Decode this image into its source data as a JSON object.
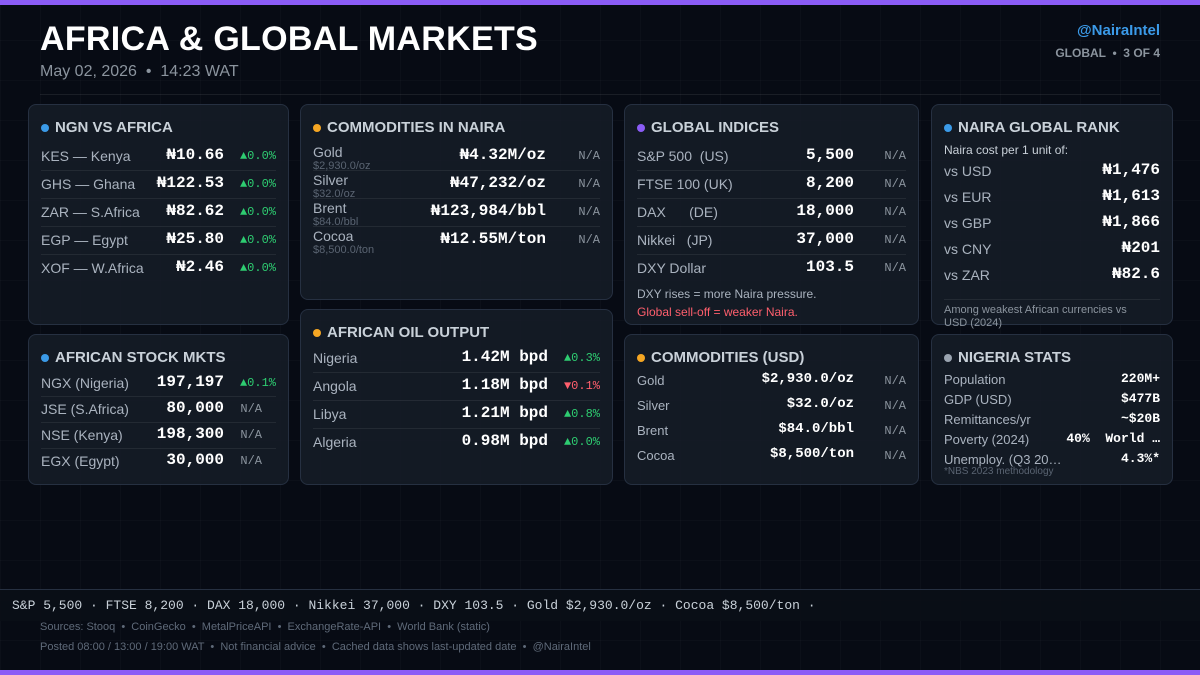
{
  "header": {
    "title": "AFRICA & GLOBAL MARKETS",
    "subtitle": "May 02, 2026  •  14:23 WAT",
    "handle": "@NairaIntel",
    "page_indicator": "GLOBAL  •  3 OF 4"
  },
  "colors": {
    "accent_bar": "#8b5cf6",
    "dot_blue": "#3b9ae8",
    "dot_orange": "#f5a623",
    "dot_purple": "#8b5cf6",
    "dot_gray": "#9aa4b0",
    "up_green": "#2ecc71",
    "down_red": "#ff5f6d"
  },
  "ngn_vs_africa": {
    "title": "NGN VS AFRICA",
    "rows": [
      {
        "label": "KES — Kenya",
        "value": "₦10.66",
        "change": "▲0.0%"
      },
      {
        "label": "GHS — Ghana",
        "value": "₦122.53",
        "change": "▲0.0%"
      },
      {
        "label": "ZAR — S.Africa",
        "value": "₦82.62",
        "change": "▲0.0%"
      },
      {
        "label": "EGP — Egypt",
        "value": "₦25.80",
        "change": "▲0.0%"
      },
      {
        "label": "XOF — W.Africa",
        "value": "₦2.46",
        "change": "▲0.0%"
      }
    ]
  },
  "commodities_naira": {
    "title": "COMMODITIES IN NAIRA",
    "rows": [
      {
        "label": "Gold",
        "sub": "$2,930.0/oz",
        "value": "₦4.32M/oz",
        "change": "N/A"
      },
      {
        "label": "Silver",
        "sub": "$32.0/oz",
        "value": "₦47,232/oz",
        "change": "N/A"
      },
      {
        "label": "Brent",
        "sub": "$84.0/bbl",
        "value": "₦123,984/bbl",
        "change": "N/A"
      },
      {
        "label": "Cocoa",
        "sub": "$8,500.0/ton",
        "value": "₦12.55M/ton",
        "change": "N/A"
      }
    ]
  },
  "global_indices": {
    "title": "GLOBAL INDICES",
    "rows": [
      {
        "label": "S&P 500  (US)",
        "value": "5,500",
        "change": "N/A"
      },
      {
        "label": "FTSE 100 (UK)",
        "value": "8,200",
        "change": "N/A"
      },
      {
        "label": "DAX      (DE)",
        "value": "18,000",
        "change": "N/A"
      },
      {
        "label": "Nikkei   (JP)",
        "value": "37,000",
        "change": "N/A"
      },
      {
        "label": "DXY Dollar",
        "value": "103.5",
        "change": "N/A"
      }
    ],
    "note": "DXY rises = more Naira pressure.",
    "warning": "Global sell-off = weaker Naira."
  },
  "naira_global_rank": {
    "title": "NAIRA GLOBAL RANK",
    "caption": "Naira cost per 1 unit of:",
    "rows": [
      {
        "label": "vs USD",
        "value": "₦1,476"
      },
      {
        "label": "vs EUR",
        "value": "₦1,613"
      },
      {
        "label": "vs GBP",
        "value": "₦1,866"
      },
      {
        "label": "vs CNY",
        "value": "₦201"
      },
      {
        "label": "vs ZAR",
        "value": "₦82.6"
      }
    ],
    "note": "Among weakest African currencies vs USD (2024)"
  },
  "african_stock_mkts": {
    "title": "AFRICAN STOCK MKTS",
    "rows": [
      {
        "label": "NGX (Nigeria)",
        "value": "197,197",
        "change": "▲0.1%"
      },
      {
        "label": "JSE (S.Africa)",
        "value": "80,000",
        "change": "N/A"
      },
      {
        "label": "NSE (Kenya)",
        "value": "198,300",
        "change": "N/A"
      },
      {
        "label": "EGX (Egypt)",
        "value": "30,000",
        "change": "N/A"
      }
    ]
  },
  "african_oil_output": {
    "title": "AFRICAN OIL OUTPUT",
    "rows": [
      {
        "label": "Nigeria",
        "value": "1.42M bpd",
        "change": "▲0.3%"
      },
      {
        "label": "Angola",
        "value": "1.18M bpd",
        "change": "▼0.1%"
      },
      {
        "label": "Libya",
        "value": "1.21M bpd",
        "change": "▲0.8%"
      },
      {
        "label": "Algeria",
        "value": "0.98M bpd",
        "change": "▲0.0%"
      }
    ]
  },
  "commodities_usd": {
    "title": "COMMODITIES (USD)",
    "rows": [
      {
        "label": "Gold",
        "value": "$2,930.0/oz",
        "change": "N/A"
      },
      {
        "label": "Silver",
        "value": "$32.0/oz",
        "change": "N/A"
      },
      {
        "label": "Brent",
        "value": "$84.0/bbl",
        "change": "N/A"
      },
      {
        "label": "Cocoa",
        "value": "$8,500/ton",
        "change": "N/A"
      }
    ]
  },
  "nigeria_stats": {
    "title": "NIGERIA STATS",
    "rows": [
      {
        "label": "Population",
        "value": "220M+"
      },
      {
        "label": "GDP (USD)",
        "value": "$477B"
      },
      {
        "label": "Remittances/yr",
        "value": "~$20B"
      },
      {
        "label": "Poverty (2024)",
        "value": "40%  World …"
      },
      {
        "label": "Unemploy. (Q3 20…",
        "value": "4.3%*"
      }
    ],
    "footnote": "*NBS 2023 methodology"
  },
  "ticker": {
    "text": "S&P 5,500 · FTSE 8,200 · DAX 18,000 · Nikkei 37,000 · DXY 103.5 · Gold $2,930.0/oz · Cocoa $8,500/ton ·"
  },
  "footer": {
    "sources": "Sources: Stooq  •  CoinGecko  •  MetalPriceAPI  •  ExchangeRate-API  •  World Bank (static)",
    "posted": "Posted 08:00 / 13:00 / 19:00 WAT  •  Not financial advice  •  Cached data shows last-updated date  •  @NairaIntel"
  }
}
